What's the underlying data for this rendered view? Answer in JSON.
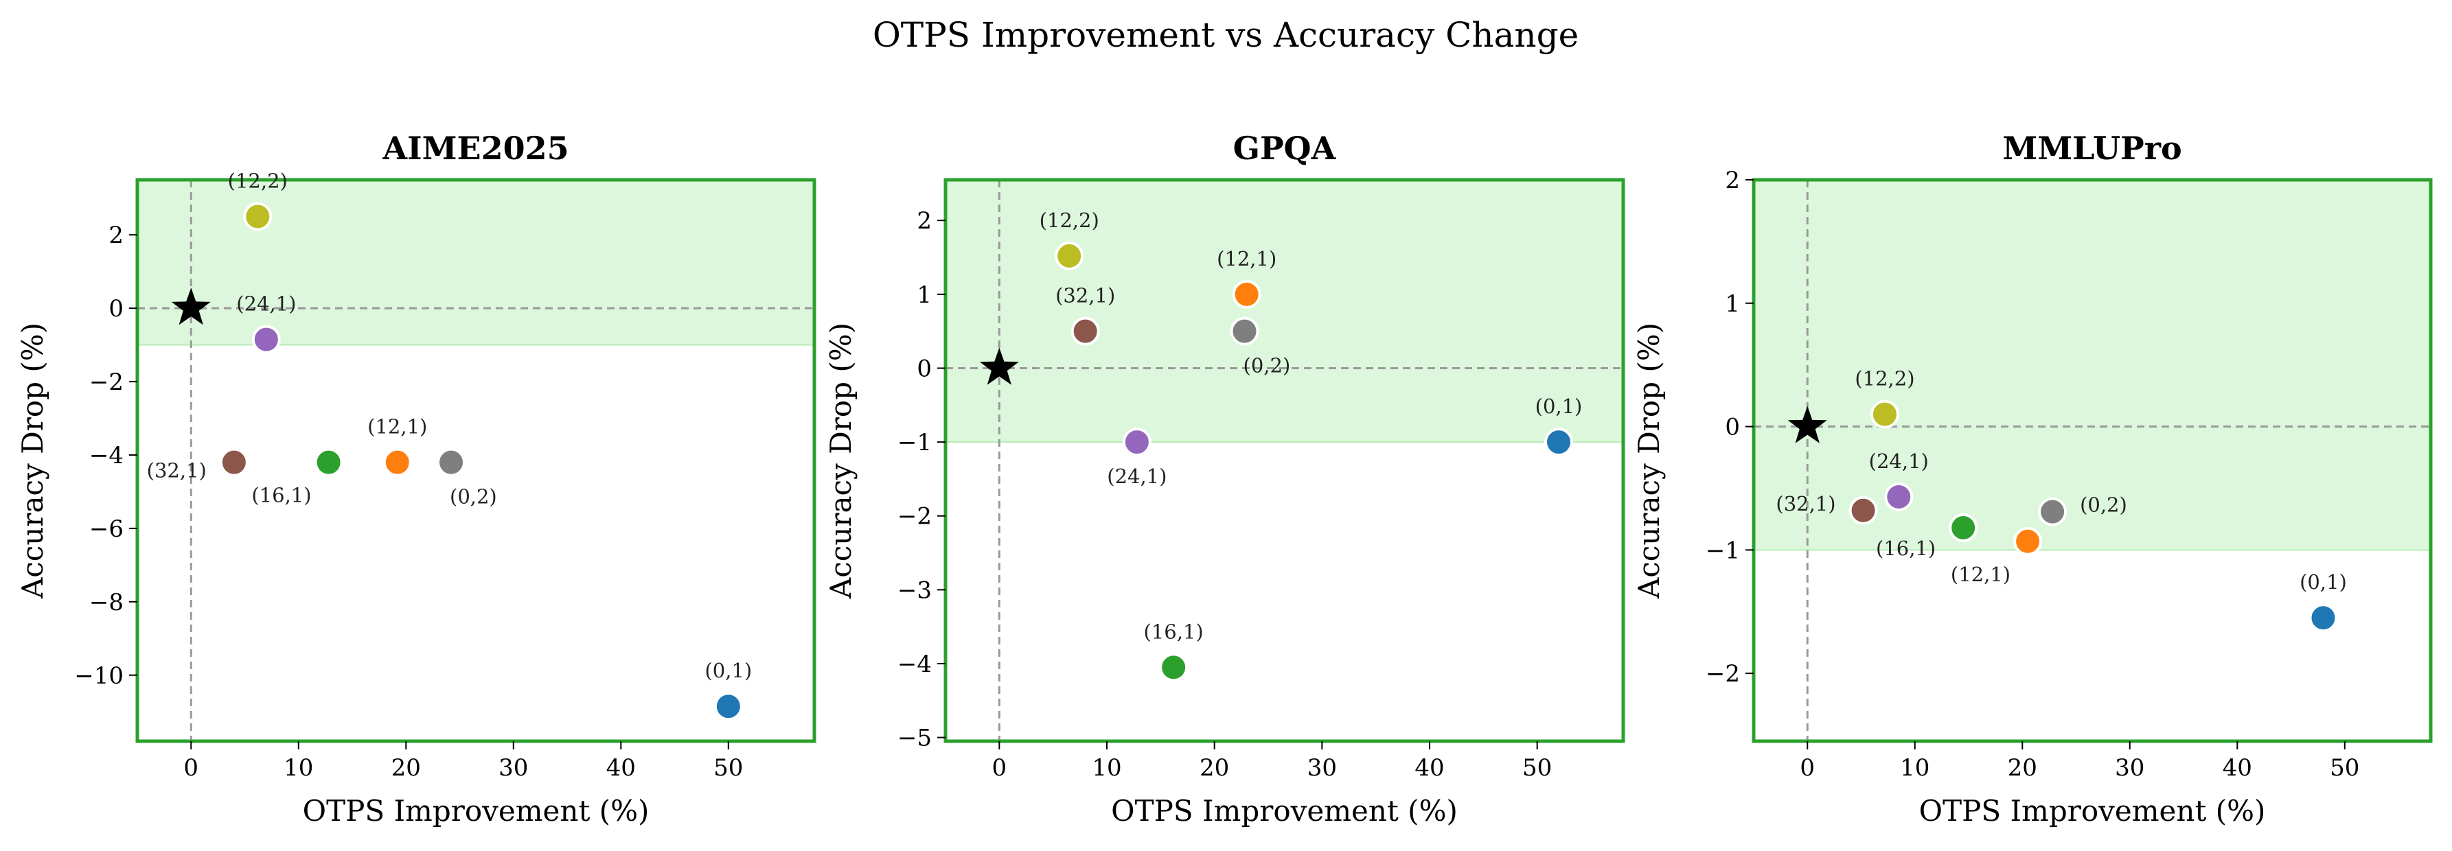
{
  "figure_title": "OTPS Improvement vs Accuracy Change",
  "colors": {
    "region_fill": "#dcf7dc",
    "frame": "#2ca02c",
    "guide": "#999999",
    "baseline_star": "#000000"
  },
  "chart_data": [
    {
      "type": "scatter",
      "title": "AIME2025",
      "xlabel": "OTPS Improvement (%)",
      "ylabel": "Accuracy Drop (%)",
      "xlim": [
        -5,
        58
      ],
      "ylim": [
        -11.8,
        3.5
      ],
      "xticks": [
        0,
        10,
        20,
        30,
        40,
        50
      ],
      "yticks": [
        2,
        0,
        -2,
        -4,
        -6,
        -8,
        -10
      ],
      "shaded_band": [
        -1,
        3.5
      ],
      "baseline": {
        "x": 0,
        "y": 0
      },
      "points": [
        {
          "label": "(12,2)",
          "x": 6.2,
          "y": 2.5,
          "color": "#bcbd22",
          "label_pos": "above"
        },
        {
          "label": "(24,1)",
          "x": 7.0,
          "y": -0.85,
          "color": "#9467bd",
          "label_pos": "above"
        },
        {
          "label": "(32,1)",
          "x": 4.0,
          "y": -4.2,
          "color": "#8c564b",
          "label_pos": "left"
        },
        {
          "label": "(16,1)",
          "x": 12.8,
          "y": -4.2,
          "color": "#2ca02c",
          "label_pos": "below-left"
        },
        {
          "label": "(12,1)",
          "x": 19.2,
          "y": -4.2,
          "color": "#ff7f0e",
          "label_pos": "above"
        },
        {
          "label": "(0,2)",
          "x": 24.2,
          "y": -4.2,
          "color": "#7f7f7f",
          "label_pos": "below-right"
        },
        {
          "label": "(0,1)",
          "x": 50.0,
          "y": -10.85,
          "color": "#1f77b4",
          "label_pos": "above"
        }
      ]
    },
    {
      "type": "scatter",
      "title": "GPQA",
      "xlabel": "OTPS Improvement (%)",
      "ylabel": "Accuracy Drop (%)",
      "xlim": [
        -5,
        58
      ],
      "ylim": [
        -5.05,
        2.55
      ],
      "xticks": [
        0,
        10,
        20,
        30,
        40,
        50
      ],
      "yticks": [
        2,
        1,
        0,
        -1,
        -2,
        -3,
        -4,
        -5
      ],
      "shaded_band": [
        -1,
        2.55
      ],
      "baseline": {
        "x": 0,
        "y": 0
      },
      "points": [
        {
          "label": "(12,2)",
          "x": 6.5,
          "y": 1.52,
          "color": "#bcbd22",
          "label_pos": "above"
        },
        {
          "label": "(32,1)",
          "x": 8.0,
          "y": 0.5,
          "color": "#8c564b",
          "label_pos": "above"
        },
        {
          "label": "(12,1)",
          "x": 23.0,
          "y": 1.0,
          "color": "#ff7f0e",
          "label_pos": "above"
        },
        {
          "label": "(0,2)",
          "x": 22.8,
          "y": 0.5,
          "color": "#7f7f7f",
          "label_pos": "below-right"
        },
        {
          "label": "(24,1)",
          "x": 12.8,
          "y": -1.0,
          "color": "#9467bd",
          "label_pos": "below"
        },
        {
          "label": "(0,1)",
          "x": 52.0,
          "y": -1.0,
          "color": "#1f77b4",
          "label_pos": "above"
        },
        {
          "label": "(16,1)",
          "x": 16.2,
          "y": -4.05,
          "color": "#2ca02c",
          "label_pos": "above"
        }
      ]
    },
    {
      "type": "scatter",
      "title": "MMLUPro",
      "xlabel": "OTPS Improvement (%)",
      "ylabel": "Accuracy Drop (%)",
      "xlim": [
        -5,
        58
      ],
      "ylim": [
        -2.55,
        2.0
      ],
      "xticks": [
        0,
        10,
        20,
        30,
        40,
        50
      ],
      "yticks": [
        2,
        1,
        0,
        -1,
        -2
      ],
      "shaded_band": [
        -1,
        2.0
      ],
      "baseline": {
        "x": 0,
        "y": 0
      },
      "points": [
        {
          "label": "(12,2)",
          "x": 7.2,
          "y": 0.1,
          "color": "#bcbd22",
          "label_pos": "above"
        },
        {
          "label": "(24,1)",
          "x": 8.5,
          "y": -0.57,
          "color": "#9467bd",
          "label_pos": "above"
        },
        {
          "label": "(32,1)",
          "x": 5.2,
          "y": -0.68,
          "color": "#8c564b",
          "label_pos": "left-up"
        },
        {
          "label": "(16,1)",
          "x": 14.5,
          "y": -0.82,
          "color": "#2ca02c",
          "label_pos": "left-down"
        },
        {
          "label": "(0,2)",
          "x": 22.8,
          "y": -0.69,
          "color": "#7f7f7f",
          "label_pos": "right-up"
        },
        {
          "label": "(12,1)",
          "x": 20.5,
          "y": -0.93,
          "color": "#ff7f0e",
          "label_pos": "below-left"
        },
        {
          "label": "(0,1)",
          "x": 48.0,
          "y": -1.55,
          "color": "#1f77b4",
          "label_pos": "above"
        }
      ]
    }
  ]
}
